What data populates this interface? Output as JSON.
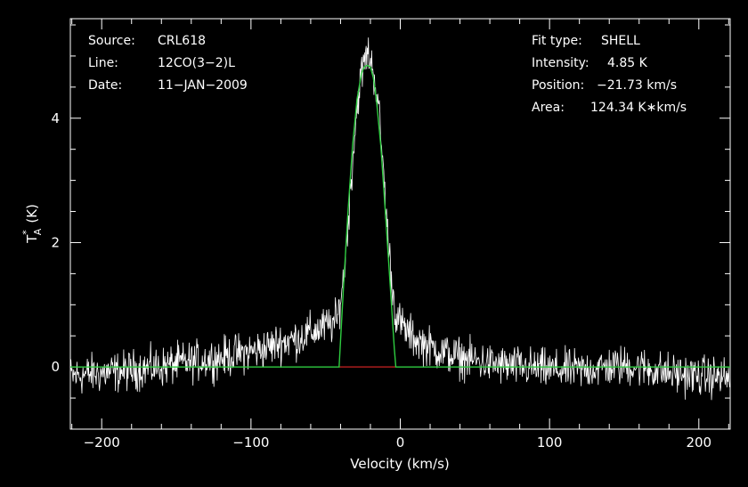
{
  "chart_data": {
    "type": "line",
    "xlabel": "Velocity (km/s)",
    "ylabel": "T",
    "ylabel_super": "*",
    "ylabel_sub": "A",
    "ylabel_unit": "(K)",
    "xlim": [
      -221,
      221
    ],
    "ylim": [
      -1.0,
      5.6
    ],
    "x_ticks": [
      -200,
      -100,
      0,
      100,
      200
    ],
    "y_ticks": [
      0,
      2,
      4
    ],
    "grid": false,
    "colors": {
      "background": "#000000",
      "data": "#ffffff",
      "fit": "#2ecc40",
      "baseline": "#cc2222",
      "axes": "#ffffff"
    },
    "series": [
      {
        "kind": "data",
        "x": [
          -220,
          -210,
          -200,
          -190,
          -180,
          -170,
          -160,
          -150,
          -140,
          -130,
          -120,
          -110,
          -100,
          -90,
          -80,
          -70,
          -60,
          -55,
          -50,
          -45,
          -42,
          -41,
          -38,
          -35,
          -32,
          -30,
          -28,
          -26,
          -24,
          -22,
          -20,
          -18,
          -16,
          -14,
          -12,
          -10,
          -8,
          -5,
          -3,
          0,
          5,
          10,
          20,
          30,
          40,
          50,
          60,
          70,
          80,
          90,
          100,
          110,
          120,
          130,
          140,
          150,
          160,
          170,
          180,
          190,
          200,
          210,
          220
        ],
        "y": [
          -0.15,
          -0.12,
          -0.1,
          -0.08,
          -0.05,
          -0.02,
          0.0,
          0.05,
          0.08,
          0.12,
          0.15,
          0.2,
          0.25,
          0.3,
          0.4,
          0.45,
          0.55,
          0.6,
          0.65,
          0.7,
          0.75,
          0.95,
          1.4,
          2.3,
          3.3,
          3.9,
          4.4,
          4.7,
          4.9,
          5.05,
          4.95,
          4.75,
          4.45,
          4.0,
          3.4,
          2.7,
          2.0,
          1.2,
          0.85,
          0.7,
          0.55,
          0.45,
          0.32,
          0.22,
          0.15,
          0.1,
          0.05,
          0.02,
          0.0,
          -0.02,
          -0.05,
          -0.05,
          -0.05,
          -0.02,
          0.0,
          0.02,
          0.0,
          -0.05,
          -0.1,
          -0.12,
          -0.15,
          -0.15,
          -0.18
        ]
      },
      {
        "kind": "fit",
        "x": [
          -221,
          -41,
          -38,
          -35,
          -32,
          -29,
          -26,
          -24,
          -22,
          -20,
          -18,
          -16,
          -13,
          -10,
          -7,
          -4,
          -3,
          221
        ],
        "y": [
          0,
          0,
          1.3,
          2.5,
          3.55,
          4.3,
          4.72,
          4.83,
          4.85,
          4.82,
          4.65,
          4.3,
          3.55,
          2.5,
          1.4,
          0.3,
          0,
          0
        ]
      }
    ],
    "baseline": {
      "x": [
        -41,
        -3
      ],
      "y": 0
    }
  },
  "annotations_left": [
    {
      "label": "Source:",
      "value": "CRL618"
    },
    {
      "label": "Line:",
      "value": "12CO(3−2)L"
    },
    {
      "label": "Date:",
      "value": "11−JAN−2009"
    }
  ],
  "annotations_right": [
    {
      "label": "Fit type:",
      "value": "SHELL"
    },
    {
      "label": "Intensity:",
      "value": "4.85 K"
    },
    {
      "label": "Position:",
      "value": "−21.73 km/s"
    },
    {
      "label": "Area:",
      "value": "124.34 K∗km/s"
    }
  ]
}
